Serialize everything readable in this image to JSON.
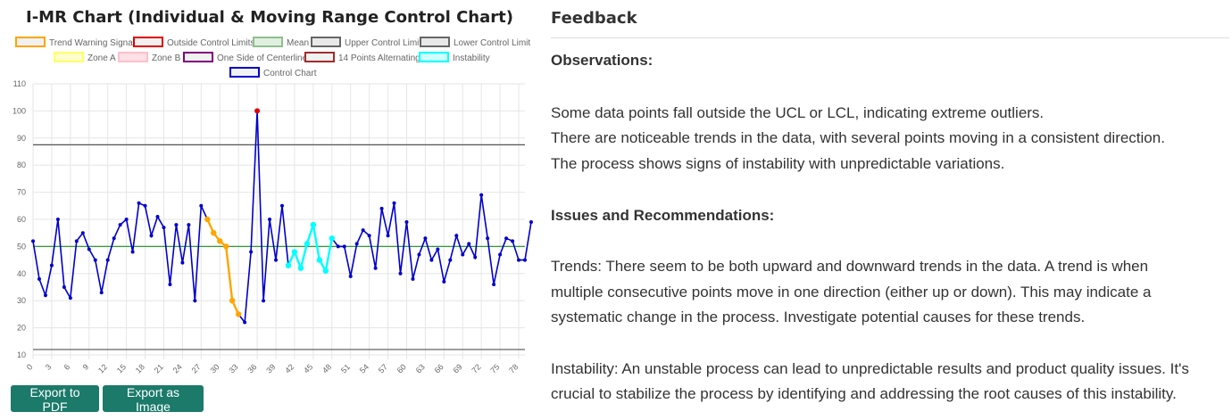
{
  "chart_data": {
    "type": "line",
    "title": "I-MR Chart (Individual & Moving Range Control Chart)",
    "legend": [
      {
        "label": "Trend Warning Signal",
        "fill": "#f1f1f1",
        "stroke": "#ffa500"
      },
      {
        "label": "Outside Control Limits",
        "fill": "#f1f1f1",
        "stroke": "#e00000"
      },
      {
        "label": "Mean",
        "fill": "#e0efe0",
        "stroke": "#8fbf8f"
      },
      {
        "label": "Upper Control Limit",
        "fill": "#e8e8e8",
        "stroke": "#666666"
      },
      {
        "label": "Lower Control Limit",
        "fill": "#e8e8e8",
        "stroke": "#666666"
      },
      {
        "label": "Zone A",
        "fill": "#ffffcc",
        "stroke": "#ffff66"
      },
      {
        "label": "Zone B",
        "fill": "#ffe0e6",
        "stroke": "#ffc0cb"
      },
      {
        "label": "One Side of Centerline",
        "fill": "#f1f1f1",
        "stroke": "#800080"
      },
      {
        "label": "14 Points Alternating",
        "fill": "#f1f1f1",
        "stroke": "#a52a2a"
      },
      {
        "label": "Instability",
        "fill": "#ccffff",
        "stroke": "#00ffff"
      },
      {
        "label": "Control Chart",
        "fill": "#f1f1f1",
        "stroke": "#0000cc"
      }
    ],
    "ylim": [
      10,
      110
    ],
    "yticks": [
      10,
      20,
      30,
      40,
      50,
      60,
      70,
      80,
      90,
      100,
      110
    ],
    "xlim": [
      0,
      79
    ],
    "xticks": [
      0,
      3,
      6,
      9,
      12,
      15,
      18,
      21,
      24,
      27,
      30,
      33,
      36,
      39,
      42,
      45,
      48,
      51,
      54,
      57,
      60,
      63,
      66,
      69,
      72,
      75,
      78
    ],
    "mean": 50,
    "ucl": 87.5,
    "lcl": 12,
    "values": [
      52,
      38,
      32,
      43,
      60,
      35,
      31,
      52,
      55,
      49,
      45,
      33,
      45,
      53,
      58,
      60,
      48,
      66,
      65,
      54,
      61,
      57,
      36,
      58,
      44,
      58,
      30,
      65,
      60,
      55,
      52,
      50,
      30,
      25,
      22,
      48,
      100,
      30,
      60,
      45,
      65,
      43,
      48,
      42,
      51,
      58,
      45,
      41,
      53,
      50,
      50,
      39,
      51,
      56,
      54,
      42,
      64,
      54,
      66,
      40,
      59,
      38,
      47,
      53,
      45,
      49,
      37,
      45,
      54,
      47,
      51,
      46,
      69,
      53,
      36,
      47,
      53,
      52,
      45,
      45,
      59
    ],
    "trend_warning_indices": [
      28,
      29,
      30,
      31,
      32,
      33
    ],
    "instability_indices": [
      41,
      42,
      43,
      44,
      45,
      46,
      47,
      48
    ],
    "outside_limit_indices": [
      36
    ],
    "colors": {
      "main": "#0000cc",
      "trend": "#ffa500",
      "instability": "#00ffff",
      "outside": "#e00000",
      "mean": "#2e9e2e",
      "limit": "#555555",
      "grid": "#e6e6e6"
    }
  },
  "buttons": {
    "export_pdf": "Export to PDF",
    "export_image": "Export as Image"
  },
  "feedback": {
    "heading": "Feedback",
    "observations_title": "Observations:",
    "observations": [
      "Some data points fall outside the UCL or LCL, indicating extreme outliers.",
      "There are noticeable trends in the data, with several points moving in a consistent direction.",
      "The process shows signs of instability with unpredictable variations."
    ],
    "issues_title": "Issues and Recommendations:",
    "trends_lines": [
      "Trends: There seem to be both upward and downward trends in the data. A trend is when",
      "multiple consecutive points move in one direction (either up or down). This may indicate a",
      "systematic change in the process. Investigate potential causes for these trends."
    ],
    "instability_lines": [
      "Instability: An unstable process can lead to unpredictable results and product quality issues. It's",
      "crucial to stabilize the process by identifying and addressing the root causes of this instability."
    ]
  }
}
